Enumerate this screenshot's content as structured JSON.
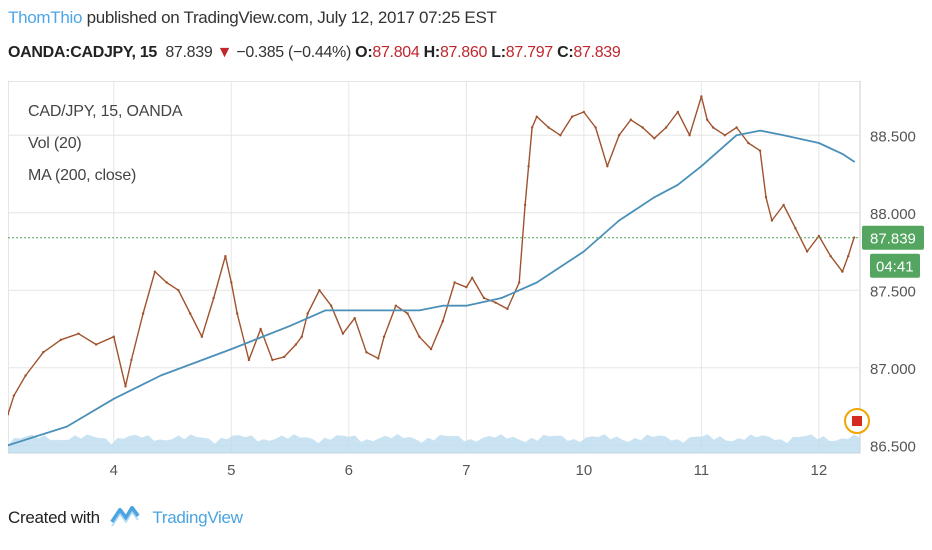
{
  "header": {
    "username": "ThomThio",
    "published_text": "published on TradingView.com, July 12, 2017 07:25 EST",
    "symbol": "OANDA:CADJPY, 15",
    "last": "87.839",
    "change_arrow": "▼",
    "change": "−0.385 (−0.44%)",
    "o_label": "O:",
    "o_value": "87.804",
    "h_label": "H:",
    "h_value": "87.860",
    "l_label": "L:",
    "l_value": "87.797",
    "c_label": "C:",
    "c_value": "87.839"
  },
  "legend": {
    "line1": "CAD/JPY, 15, OANDA",
    "line2": "Vol (20)",
    "line3": "MA (200, close)"
  },
  "chart_data": {
    "type": "line",
    "title": "CAD/JPY, 15, OANDA",
    "ylim": [
      86.45,
      88.85
    ],
    "y_ticks": [
      "88.500",
      "88.000",
      "87.500",
      "87.000",
      "86.500"
    ],
    "x_tick_labels": [
      {
        "label": "4",
        "x": 3.0
      },
      {
        "label": "5",
        "x": 4.0
      },
      {
        "label": "6",
        "x": 5.0
      },
      {
        "label": "7",
        "x": 6.0
      },
      {
        "label": "10",
        "x": 7.0
      },
      {
        "label": "11",
        "x": 8.0
      },
      {
        "label": "12",
        "x": 9.0
      }
    ],
    "xlim": [
      2.1,
      9.35
    ],
    "series": [
      {
        "name": "CAD/JPY",
        "color": "#a0522d",
        "x": [
          2.1,
          2.15,
          2.25,
          2.4,
          2.55,
          2.7,
          2.85,
          3.0,
          3.1,
          3.15,
          3.25,
          3.35,
          3.45,
          3.55,
          3.65,
          3.75,
          3.85,
          3.95,
          4.0,
          4.05,
          4.15,
          4.25,
          4.35,
          4.45,
          4.55,
          4.6,
          4.65,
          4.75,
          4.85,
          4.95,
          5.05,
          5.15,
          5.25,
          5.3,
          5.4,
          5.5,
          5.6,
          5.7,
          5.8,
          5.9,
          6.0,
          6.05,
          6.15,
          6.25,
          6.35,
          6.45,
          6.5,
          6.53,
          6.56,
          6.6,
          6.7,
          6.8,
          6.9,
          7.0,
          7.1,
          7.2,
          7.3,
          7.4,
          7.5,
          7.6,
          7.7,
          7.8,
          7.9,
          8.0,
          8.05,
          8.1,
          8.2,
          8.3,
          8.4,
          8.5,
          8.55,
          8.6,
          8.7,
          8.8,
          8.9,
          9.0,
          9.1,
          9.2,
          9.25,
          9.3
        ],
        "values": [
          86.7,
          86.82,
          86.95,
          87.1,
          87.18,
          87.22,
          87.15,
          87.2,
          86.88,
          87.05,
          87.35,
          87.62,
          87.55,
          87.5,
          87.35,
          87.2,
          87.45,
          87.72,
          87.55,
          87.35,
          87.05,
          87.25,
          87.05,
          87.07,
          87.15,
          87.2,
          87.35,
          87.5,
          87.4,
          87.22,
          87.32,
          87.1,
          87.06,
          87.2,
          87.4,
          87.35,
          87.2,
          87.12,
          87.3,
          87.55,
          87.52,
          87.58,
          87.45,
          87.42,
          87.38,
          87.55,
          88.05,
          88.3,
          88.55,
          88.62,
          88.55,
          88.5,
          88.62,
          88.65,
          88.55,
          88.3,
          88.5,
          88.6,
          88.55,
          88.48,
          88.55,
          88.65,
          88.5,
          88.75,
          88.6,
          88.55,
          88.5,
          88.55,
          88.45,
          88.4,
          88.1,
          87.95,
          88.05,
          87.9,
          87.75,
          87.85,
          87.72,
          87.62,
          87.72,
          87.84
        ]
      },
      {
        "name": "MA (200, close)",
        "color": "#4a90b8",
        "x": [
          2.1,
          2.6,
          3.0,
          3.4,
          4.0,
          4.5,
          4.8,
          5.0,
          5.3,
          5.6,
          5.8,
          6.0,
          6.3,
          6.6,
          7.0,
          7.3,
          7.6,
          7.8,
          8.0,
          8.3,
          8.5,
          8.7,
          9.0,
          9.2,
          9.3
        ],
        "values": [
          86.5,
          86.62,
          86.8,
          86.95,
          87.12,
          87.27,
          87.37,
          87.37,
          87.37,
          87.37,
          87.4,
          87.4,
          87.45,
          87.55,
          87.75,
          87.95,
          88.1,
          88.18,
          88.3,
          88.5,
          88.53,
          88.5,
          88.45,
          88.38,
          88.33
        ]
      }
    ],
    "volume_note": "Vol (20)",
    "last_price_label": "87.839",
    "countdown_label": "04:41"
  },
  "footer": {
    "created_with": "Created with",
    "brand": "TradingView"
  },
  "colors": {
    "price": "#a0522d",
    "ma": "#4a90b8",
    "volume_fill": "#bcdcf0",
    "last_price_box": "#53a55f",
    "grid": "#e6e6e6",
    "axis_text": "#555555"
  }
}
